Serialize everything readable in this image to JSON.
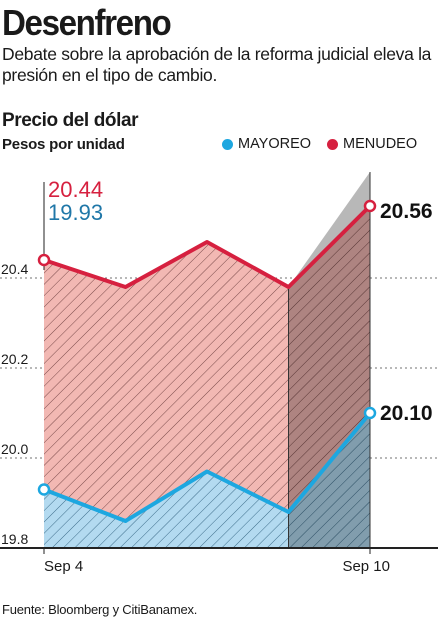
{
  "headline": "Desenfreno",
  "subtitle": "Debate sobre la aprobación de la reforma judicial eleva la presión en el tipo de cambio.",
  "source": "Fuente: Bloomberg y CitiBanamex.",
  "colors": {
    "mayoreo": "#1da7e0",
    "menudeo": "#d6203f",
    "text": "#1a1a1a"
  },
  "chart_data": {
    "type": "area",
    "title": "Precio del dólar",
    "ylabel": "Pesos por unidad",
    "legend_position": "top-right",
    "grid": true,
    "ylim": [
      19.8,
      20.6
    ],
    "yticks": [
      "19.8",
      "20.0",
      "20.2",
      "20.4"
    ],
    "x_tick_labels": [
      "Sep 4",
      "Sep 10"
    ],
    "series": [
      {
        "name": "MENUDEO",
        "values": [
          20.44,
          20.38,
          20.48,
          20.38,
          20.56
        ]
      },
      {
        "name": "MAYOREO",
        "values": [
          19.93,
          19.86,
          19.97,
          19.88,
          20.1
        ]
      }
    ],
    "annotations": {
      "start_menudeo": "20.44",
      "start_mayoreo": "19.93",
      "end_menudeo": "20.56",
      "end_mayoreo": "20.10"
    }
  }
}
